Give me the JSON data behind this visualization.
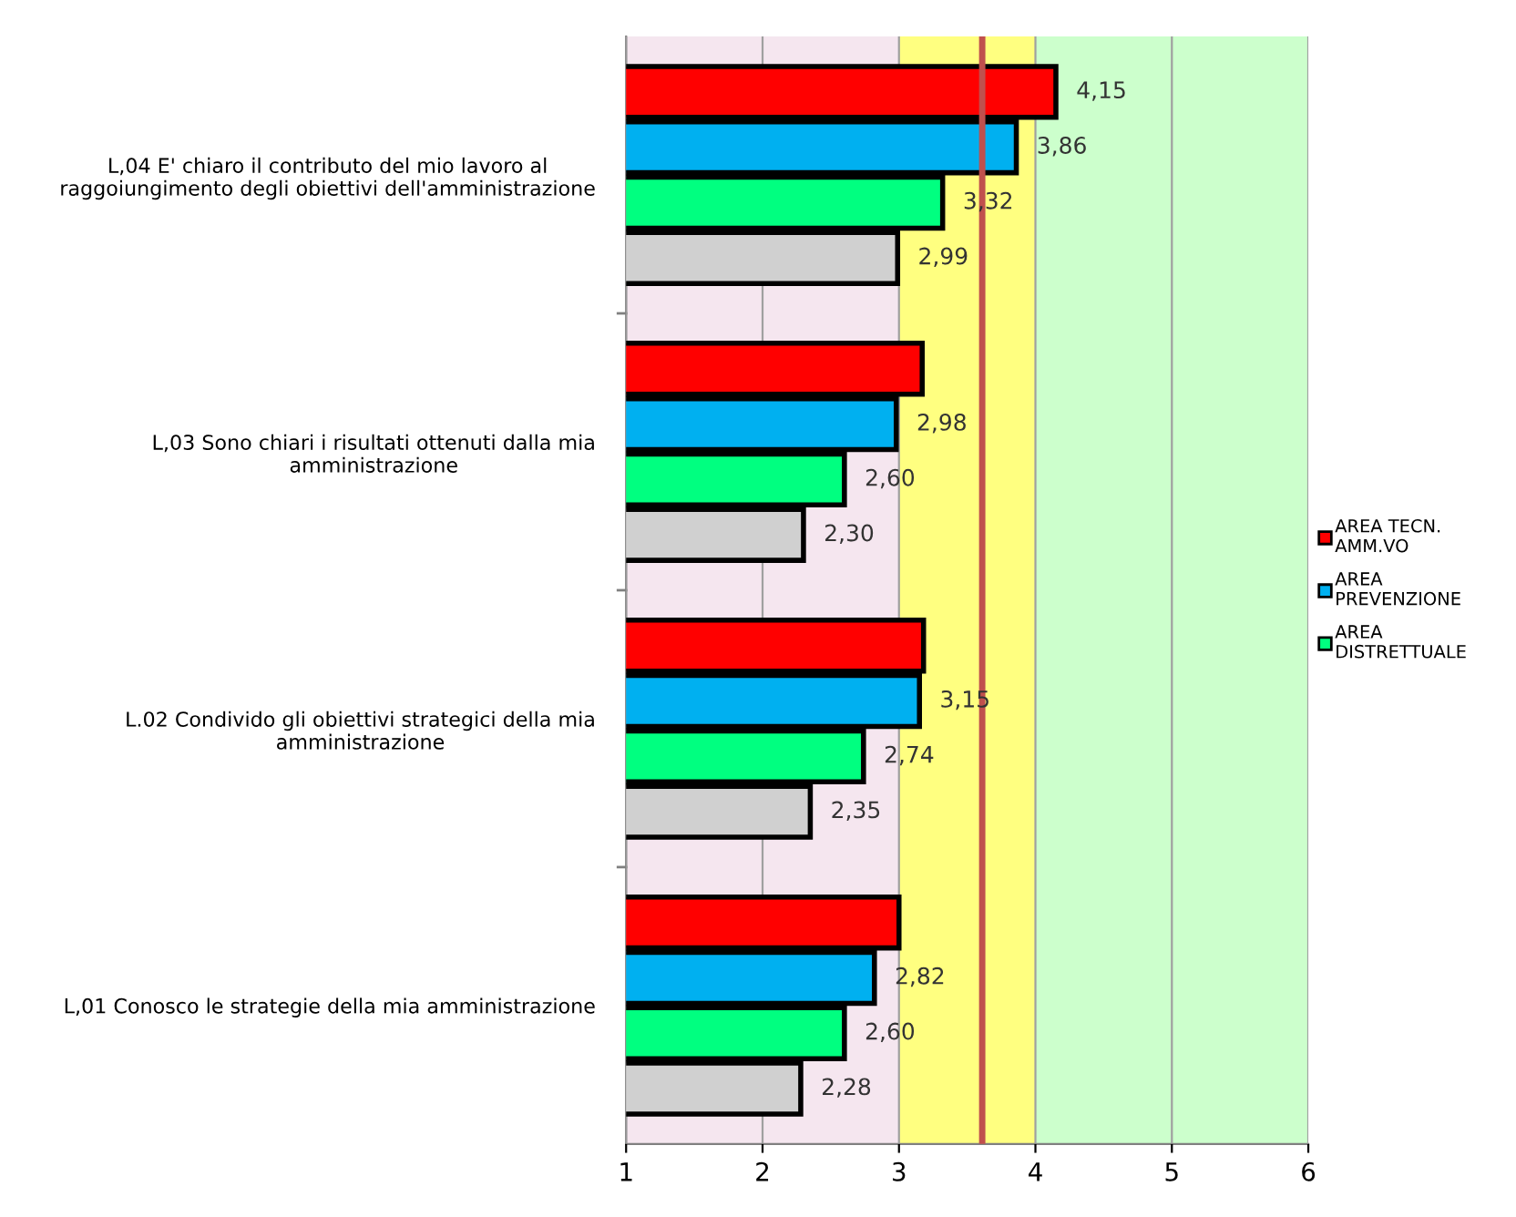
{
  "chart_data": {
    "type": "bar",
    "orientation": "horizontal",
    "categories": [
      "L,04 E' chiaro il contributo del mio lavoro al\nraggoiungimento degli obiettivi dell'amministrazione",
      "L,03 Sono chiari i risultati ottenuti dalla mia\namministrazione",
      "L.02 Condivido gli obiettivi strategici della mia\namministrazione",
      "L,01 Conosco le strategie della mia amministrazione"
    ],
    "series": [
      {
        "name": "AREA TECN.\nAMM.VO",
        "color": "#ff0000",
        "values": [
          4.15,
          3.17,
          3.18,
          3.0
        ],
        "value_labels": [
          "4,15",
          null,
          null,
          null
        ]
      },
      {
        "name": "AREA\nPREVENZIONE",
        "color": "#00b0f0",
        "values": [
          3.86,
          2.98,
          3.15,
          2.82
        ],
        "value_labels": [
          "3,86",
          "2,98",
          "3,15",
          "2,82"
        ]
      },
      {
        "name": "AREA\nDISTRETTUALE",
        "color": "#00ff80",
        "values": [
          3.32,
          2.6,
          2.74,
          2.6
        ],
        "value_labels": [
          "3,32",
          "2,60",
          "2,74",
          "2,60"
        ]
      },
      {
        "color": "#d0d0d0",
        "values": [
          2.99,
          2.3,
          2.35,
          2.28
        ],
        "value_labels": [
          "2,99",
          "2,30",
          "2,35",
          "2,28"
        ]
      }
    ],
    "xlim": [
      1,
      6
    ],
    "xticks": [
      1,
      2,
      3,
      4,
      5,
      6
    ],
    "grid": "x",
    "legend": "right",
    "bands": [
      {
        "axis": "x",
        "from": 1,
        "to": 3,
        "color": "#f5e6ef"
      },
      {
        "axis": "x",
        "from": 3,
        "to": 4,
        "color": "#ffff80"
      },
      {
        "axis": "x",
        "from": 4,
        "to": 6,
        "color": "#ccffcc"
      }
    ],
    "ref_lines": [
      {
        "axis": "x",
        "value": 3.61,
        "color": "#c0504d"
      }
    ]
  }
}
